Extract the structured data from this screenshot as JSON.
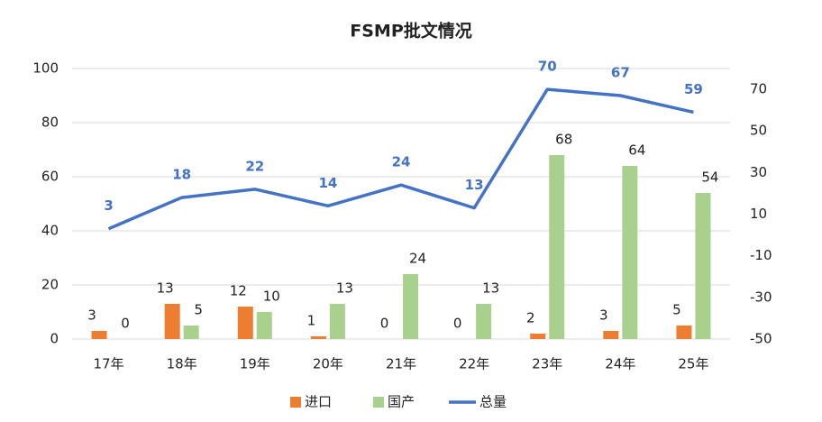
{
  "chart_data": {
    "type": "bar",
    "title": "FSMP批文情况",
    "categories": [
      "17年",
      "18年",
      "19年",
      "20年",
      "21年",
      "22年",
      "23年",
      "24年",
      "25年"
    ],
    "series": [
      {
        "name": "进口",
        "color": "#ed7d31",
        "values": [
          3,
          13,
          12,
          1,
          0,
          0,
          2,
          3,
          5
        ]
      },
      {
        "name": "国产",
        "color": "#a9d18e",
        "values": [
          0,
          5,
          10,
          13,
          24,
          13,
          68,
          64,
          54
        ]
      },
      {
        "name": "总量",
        "color": "#4472c4",
        "type": "line",
        "axis": "y2",
        "values": [
          3,
          18,
          22,
          14,
          24,
          13,
          70,
          67,
          59
        ]
      }
    ],
    "ylim": [
      0,
      100
    ],
    "yticks": [
      0,
      20,
      40,
      60,
      80,
      100
    ],
    "y2lim": [
      -50,
      80
    ],
    "y2ticks": [
      -50,
      -30,
      -10,
      10,
      30,
      50,
      70
    ],
    "grid": true,
    "legend": "bottom"
  }
}
